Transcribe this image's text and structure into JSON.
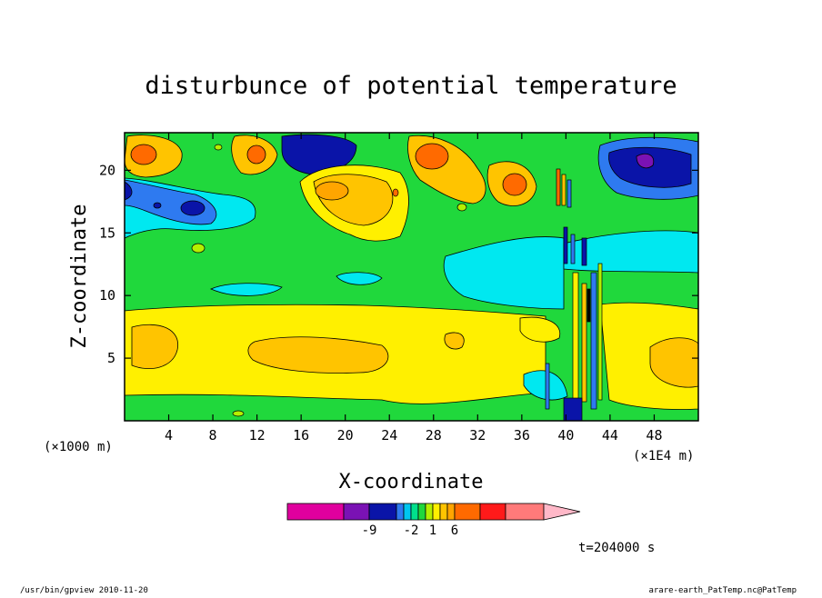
{
  "chart_data": {
    "type": "heatmap",
    "title": "disturbunce of potential temperature",
    "xlabel": "X-coordinate",
    "ylabel": "Z-coordinate",
    "x_unit_left": "(×1000 m)",
    "x_unit_right": "(×1E4 m)",
    "xlim": [
      0,
      52
    ],
    "ylim": [
      0,
      23
    ],
    "x_ticks": [
      4,
      8,
      12,
      16,
      20,
      24,
      28,
      32,
      36,
      40,
      44,
      48
    ],
    "y_ticks": [
      5,
      10,
      15,
      20
    ],
    "colorbar": {
      "labeled_ticks": [
        {
          "label": "-9",
          "index": 2
        },
        {
          "label": "-2",
          "index": 5
        },
        {
          "label": "1",
          "index": 8
        },
        {
          "label": "6",
          "index": 11
        }
      ],
      "colors": [
        "#e0009e",
        "#7a12b4",
        "#0a14a8",
        "#2e7af0",
        "#00c6f0",
        "#00e08c",
        "#20d83c",
        "#b4f000",
        "#fff000",
        "#ffc400",
        "#ffa500",
        "#ff6a00",
        "#ff1a1a",
        "#ff7a7a",
        "#ffb8c8"
      ]
    },
    "time_label": "t=204000 s",
    "footer_left": "/usr/bin/gpview  2010-11-20",
    "footer_right": "arare-earth_PatTemp.nc@PatTemp",
    "field_colors": {
      "green": "#20d83c",
      "lime": "#b4f000",
      "yellow": "#fff000",
      "light_orange": "#ffc400",
      "orange": "#ffa500",
      "dark_orange": "#ff6a00",
      "red": "#ff1a1a",
      "cyan": "#00e8f0",
      "light_blue": "#2e7af0",
      "blue": "#0a14a8",
      "purple": "#7a12b4"
    }
  }
}
